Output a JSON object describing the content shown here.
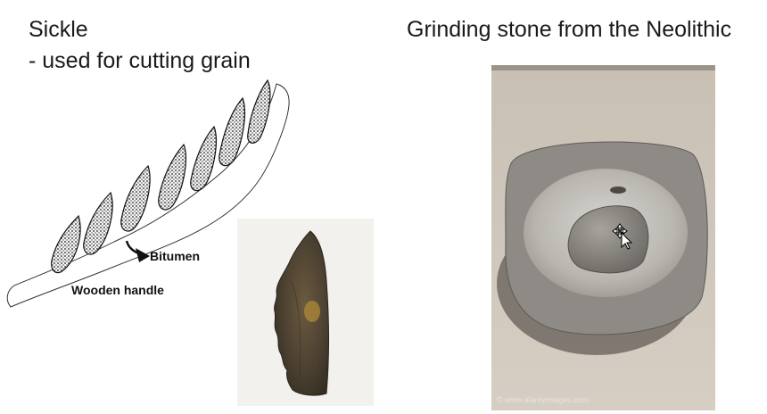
{
  "slide": {
    "left_title": "Sickle",
    "left_subtitle": "- used for cutting grain",
    "right_title": "Grinding stone from the Neolithic"
  },
  "sickle_drawing": {
    "label_bitumen": "Bitumen",
    "label_handle": "Wooden handle"
  },
  "grinding_photo": {
    "watermark": "© www.alamyimages.com"
  },
  "cursor": {
    "icon": "move-cursor-icon"
  },
  "colors": {
    "background": "#ffffff",
    "text": "#1a1a1a",
    "sand": "#cbc2b6",
    "stone": "#8e8b86",
    "flint": "#4a3f30"
  }
}
